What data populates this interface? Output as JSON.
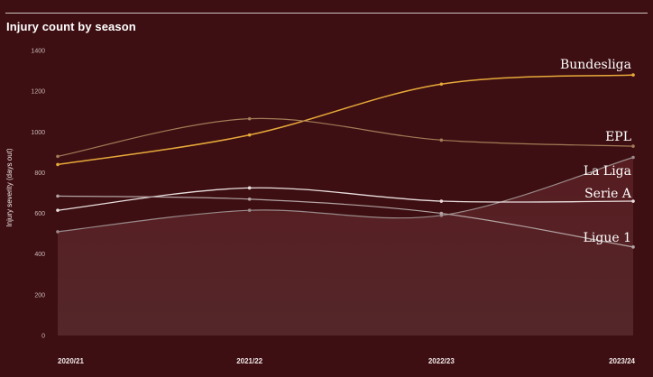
{
  "chart_data": {
    "type": "line",
    "title": "Injury count by season",
    "ylabel": "Injury severity (days out)",
    "xlabel": "",
    "x": [
      "2020/21",
      "2021/22",
      "2022/23",
      "2023/24"
    ],
    "yticks": [
      0,
      200,
      400,
      600,
      800,
      1000,
      1200,
      1400
    ],
    "ylim": [
      0,
      1400
    ],
    "grid": false,
    "series": [
      {
        "name": "Bundesliga",
        "color": "#e8a93a",
        "width": 1.5,
        "values": [
          840,
          985,
          1235,
          1280
        ]
      },
      {
        "name": "EPL",
        "color": "#a37c57",
        "width": 1.2,
        "values": [
          880,
          1065,
          960,
          930
        ]
      },
      {
        "name": "La Liga",
        "color": "#9a8a8b",
        "width": 1.2,
        "values": [
          510,
          615,
          590,
          875
        ]
      },
      {
        "name": "Serie A",
        "color": "#e9dede",
        "width": 1.3,
        "values": [
          615,
          725,
          660,
          660
        ]
      },
      {
        "name": "Ligue 1",
        "color": "#b3a3a4",
        "width": 1.2,
        "values": [
          685,
          670,
          600,
          435
        ]
      }
    ]
  }
}
